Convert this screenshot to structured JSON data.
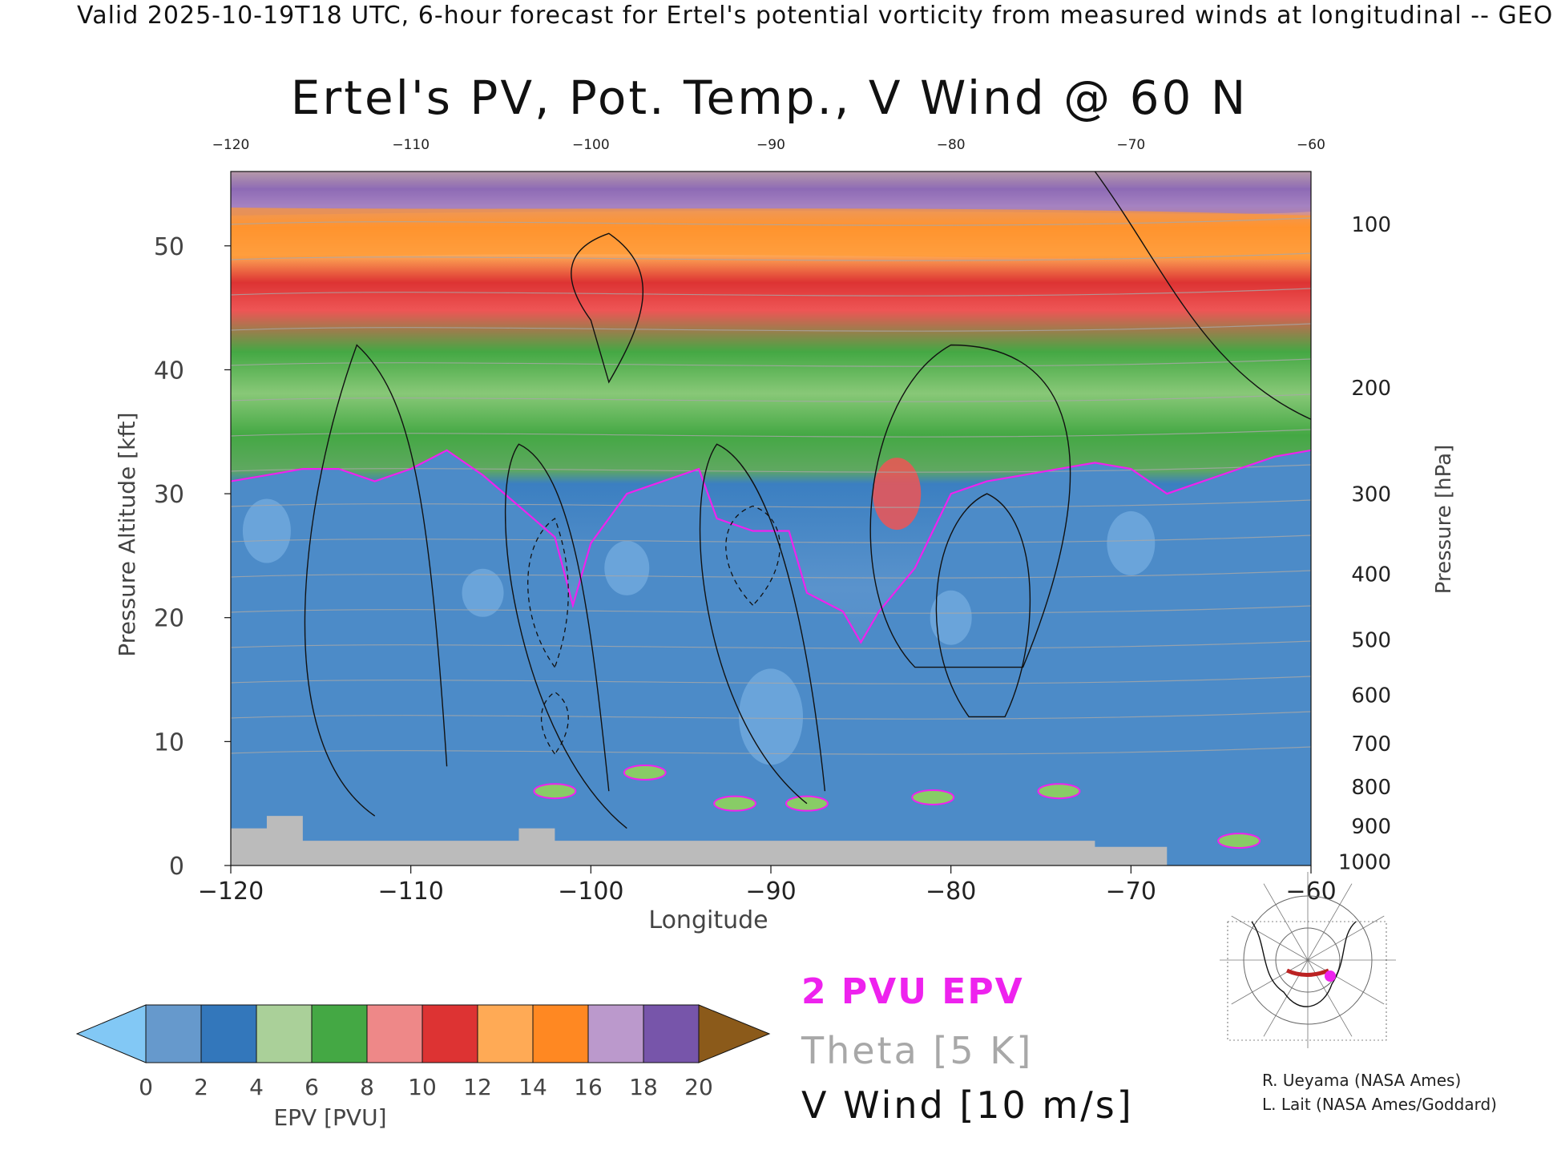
{
  "header": "Valid 2025-10-19T18 UTC, 6-hour forecast for Ertel's potential vorticity from measured winds at longitudinal -- GEO",
  "chart_data": {
    "type": "heatmap",
    "title": "Ertel's PV, Pot. Temp., V Wind @ 60 N",
    "xlabel": "Longitude",
    "ylabel": "Pressure Altitude [kft]",
    "y2label": "Pressure [hPa]",
    "xlim": [
      -120,
      -60
    ],
    "ylim": [
      0,
      56
    ],
    "x_ticks": [
      -120,
      -110,
      -100,
      -90,
      -80,
      -70,
      -60
    ],
    "y_ticks": [
      0,
      10,
      20,
      30,
      40,
      50
    ],
    "pressure_ticks": [
      100,
      200,
      300,
      400,
      500,
      600,
      700,
      800,
      900,
      1000
    ],
    "tropopause_kft": [
      [
        -120,
        31
      ],
      [
        -118,
        31.5
      ],
      [
        -116,
        32
      ],
      [
        -114,
        32
      ],
      [
        -112,
        31
      ],
      [
        -110,
        32
      ],
      [
        -108,
        33.5
      ],
      [
        -106,
        31.5
      ],
      [
        -104,
        29
      ],
      [
        -102,
        26.5
      ],
      [
        -101,
        21
      ],
      [
        -100,
        26
      ],
      [
        -98,
        30
      ],
      [
        -96,
        31
      ],
      [
        -94,
        32
      ],
      [
        -93,
        28
      ],
      [
        -91,
        27
      ],
      [
        -89,
        27
      ],
      [
        -88,
        22
      ],
      [
        -86,
        20.5
      ],
      [
        -85,
        18
      ],
      [
        -84,
        20.5
      ],
      [
        -82,
        24
      ],
      [
        -81,
        27
      ],
      [
        -80,
        30
      ],
      [
        -78,
        31
      ],
      [
        -76,
        31.5
      ],
      [
        -74,
        32
      ],
      [
        -72,
        32.5
      ],
      [
        -70,
        32
      ],
      [
        -68,
        30
      ],
      [
        -66,
        31
      ],
      [
        -64,
        32
      ],
      [
        -62,
        33
      ],
      [
        -60,
        33.5
      ]
    ],
    "colorbar": {
      "label": "EPV [PVU]",
      "ticks": [
        0,
        2,
        4,
        6,
        8,
        10,
        12,
        14,
        16,
        18,
        20
      ],
      "colors": [
        "#6699cc",
        "#3377bb",
        "#aad099",
        "#44a844",
        "#ee8888",
        "#dd3333",
        "#ffaa55",
        "#ff8822",
        "#bb99cc",
        "#7755aa",
        "#eedd88"
      ],
      "under_color": "#82c8f5",
      "over_color": "#8b5a1a"
    },
    "legend": [
      {
        "label": "2 PVU EPV",
        "color": "#ee22ee"
      },
      {
        "label": "Theta [5 K]",
        "color": "#a8a8a8"
      },
      {
        "label": "V Wind [10 m/s]",
        "color": "#111111"
      }
    ]
  },
  "credits": [
    "R. Ueyama (NASA Ames)",
    "L. Lait (NASA Ames/Goddard)"
  ],
  "colors": {
    "background": "#ffffff",
    "ground": "#bbbbbb",
    "tropopause": "#ee22ee"
  }
}
